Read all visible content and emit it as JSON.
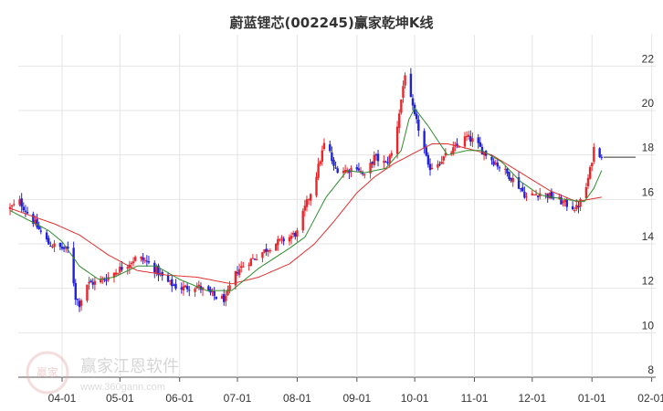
{
  "chart_data": {
    "type": "candlestick",
    "title": "蔚蓝锂芯(002245)赢家乾坤K线",
    "xlabel": "",
    "ylabel": "",
    "ylim": [
      8,
      23
    ],
    "y_ticks": [
      8,
      10,
      12,
      14,
      16,
      18,
      20,
      22
    ],
    "x_ticks": [
      "04-01",
      "05-01",
      "06-01",
      "07-01",
      "08-01",
      "09-01",
      "10-01",
      "11-01",
      "12-01",
      "01-01",
      "02-01"
    ],
    "grid": true,
    "reference_line": 17.9,
    "colors": {
      "up": "#e8262b",
      "down": "#2121d6",
      "special": "#7b1f8a",
      "fast_ma": "#2e8b2e",
      "slow_ma": "#e03030"
    },
    "price_path": [
      [
        "03-05",
        15.6
      ],
      [
        "03-10",
        15.9
      ],
      [
        "03-18",
        14.9
      ],
      [
        "03-25",
        14.0
      ],
      [
        "04-01",
        13.8
      ],
      [
        "04-05",
        13.7
      ],
      [
        "04-08",
        11.6
      ],
      [
        "04-10",
        11.3
      ],
      [
        "04-14",
        12.2
      ],
      [
        "04-20",
        12.3
      ],
      [
        "04-25",
        12.5
      ],
      [
        "04-28",
        12.7
      ],
      [
        "05-05",
        13.1
      ],
      [
        "05-10",
        13.4
      ],
      [
        "05-15",
        13.2
      ],
      [
        "05-20",
        12.8
      ],
      [
        "05-25",
        12.3
      ],
      [
        "06-01",
        12.0
      ],
      [
        "06-10",
        12.1
      ],
      [
        "06-20",
        11.6
      ],
      [
        "06-25",
        11.5
      ],
      [
        "06-28",
        12.3
      ],
      [
        "07-01",
        12.8
      ],
      [
        "07-05",
        13.1
      ],
      [
        "07-12",
        13.5
      ],
      [
        "07-20",
        14.0
      ],
      [
        "07-28",
        14.3
      ],
      [
        "08-01",
        14.5
      ],
      [
        "08-05",
        15.6
      ],
      [
        "08-10",
        16.8
      ],
      [
        "08-16",
        18.8
      ],
      [
        "08-20",
        17.4
      ],
      [
        "08-27",
        17.3
      ],
      [
        "09-01",
        17.5
      ],
      [
        "09-05",
        17.0
      ],
      [
        "09-10",
        17.9
      ],
      [
        "09-16",
        17.6
      ],
      [
        "09-20",
        18.2
      ],
      [
        "09-24",
        20.5
      ],
      [
        "09-26",
        21.7
      ],
      [
        "09-28",
        20.8
      ],
      [
        "10-01",
        19.7
      ],
      [
        "10-05",
        18.7
      ],
      [
        "10-08",
        17.4
      ],
      [
        "10-12",
        17.6
      ],
      [
        "10-18",
        18.0
      ],
      [
        "10-22",
        18.3
      ],
      [
        "10-25",
        18.6
      ],
      [
        "10-28",
        18.8
      ],
      [
        "11-01",
        18.6
      ],
      [
        "11-05",
        18.2
      ],
      [
        "11-10",
        17.8
      ],
      [
        "11-15",
        17.4
      ],
      [
        "11-20",
        17.0
      ],
      [
        "11-25",
        16.5
      ],
      [
        "11-28",
        16.1
      ],
      [
        "12-05",
        16.3
      ],
      [
        "12-12",
        16.1
      ],
      [
        "12-18",
        15.8
      ],
      [
        "12-24",
        15.6
      ],
      [
        "12-28",
        16.2
      ],
      [
        "12-31",
        17.3
      ],
      [
        "01-02",
        18.3
      ],
      [
        "01-06",
        18.0
      ]
    ],
    "ma_fast": [
      [
        "03-05",
        15.5
      ],
      [
        "03-25",
        14.6
      ],
      [
        "04-01",
        14.1
      ],
      [
        "04-10",
        13.0
      ],
      [
        "04-20",
        12.4
      ],
      [
        "04-28",
        12.5
      ],
      [
        "05-10",
        13.0
      ],
      [
        "05-20",
        13.0
      ],
      [
        "06-01",
        12.4
      ],
      [
        "06-15",
        11.9
      ],
      [
        "06-28",
        11.9
      ],
      [
        "07-12",
        12.9
      ],
      [
        "07-28",
        13.8
      ],
      [
        "08-05",
        14.3
      ],
      [
        "08-16",
        16.1
      ],
      [
        "08-27",
        17.3
      ],
      [
        "09-05",
        17.2
      ],
      [
        "09-16",
        17.4
      ],
      [
        "09-24",
        18.2
      ],
      [
        "09-28",
        19.6
      ],
      [
        "10-01",
        20.1
      ],
      [
        "10-08",
        19.3
      ],
      [
        "10-18",
        18.0
      ],
      [
        "10-28",
        18.2
      ],
      [
        "11-05",
        18.2
      ],
      [
        "11-15",
        17.7
      ],
      [
        "11-25",
        16.8
      ],
      [
        "12-05",
        16.2
      ],
      [
        "12-18",
        16.0
      ],
      [
        "12-28",
        15.9
      ],
      [
        "01-02",
        16.5
      ],
      [
        "01-06",
        17.3
      ]
    ],
    "ma_slow": [
      [
        "03-05",
        15.6
      ],
      [
        "03-18",
        15.2
      ],
      [
        "03-28",
        14.9
      ],
      [
        "04-10",
        14.4
      ],
      [
        "04-25",
        13.5
      ],
      [
        "05-10",
        12.8
      ],
      [
        "05-25",
        12.6
      ],
      [
        "06-10",
        12.5
      ],
      [
        "06-28",
        12.2
      ],
      [
        "07-12",
        12.5
      ],
      [
        "07-28",
        13.1
      ],
      [
        "08-10",
        14.0
      ],
      [
        "08-20",
        15.0
      ],
      [
        "09-01",
        16.3
      ],
      [
        "09-10",
        17.0
      ],
      [
        "09-20",
        17.6
      ],
      [
        "10-01",
        18.1
      ],
      [
        "10-10",
        18.5
      ],
      [
        "10-18",
        18.5
      ],
      [
        "10-28",
        18.3
      ],
      [
        "11-10",
        18.0
      ],
      [
        "11-25",
        17.2
      ],
      [
        "12-10",
        16.4
      ],
      [
        "12-24",
        15.9
      ],
      [
        "01-06",
        16.1
      ]
    ]
  },
  "watermark_text": "赢家江恩软件",
  "watermark_logo_text": "赢家",
  "watermark_url": "www.360gann.com"
}
